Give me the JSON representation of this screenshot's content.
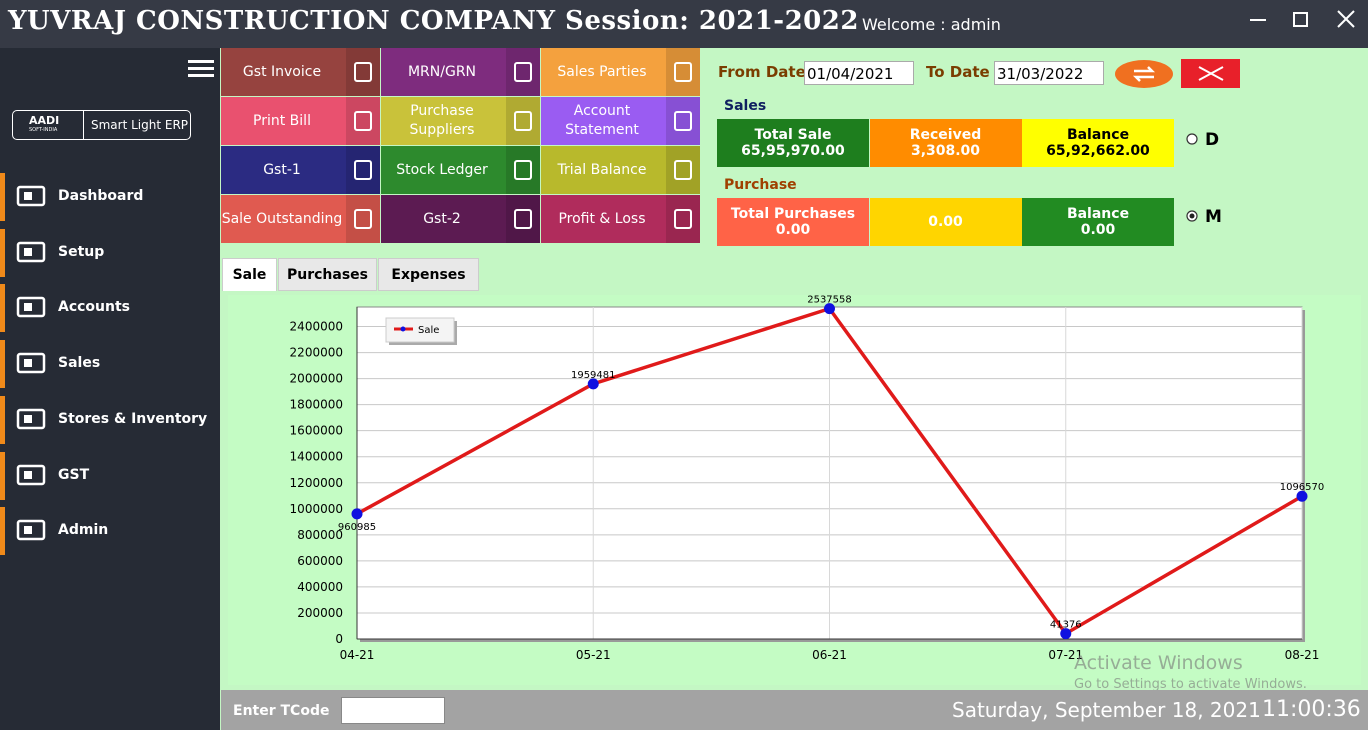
{
  "header": {
    "title": "YUVRAJ CONSTRUCTION COMPANY Session: 2021-2022",
    "welcome": "Welcome : admin"
  },
  "sidebar": {
    "logo": "AADI",
    "logo_sub": "SOFT-INDIA",
    "product": "Smart Light ERP",
    "menu": [
      "Dashboard",
      "Setup",
      "Accounts",
      "Sales",
      "Stores & Inventory",
      "GST",
      "Admin"
    ]
  },
  "tiles": [
    "Gst Invoice",
    "MRN/GRN",
    "Sales Parties",
    "Print Bill",
    "Purchase Suppliers",
    "Account Statement",
    "Gst-1",
    "Stock Ledger",
    "Trial Balance",
    "Sale Outstanding",
    "Gst-2",
    "Profit & Loss"
  ],
  "dates": {
    "from_label": "From Date",
    "from_value": "01/04/2021",
    "to_label": "To Date",
    "to_value": "31/03/2022"
  },
  "sales": {
    "title": "Sales",
    "cards": [
      {
        "label": "Total Sale",
        "value": "65,95,970.00"
      },
      {
        "label": "Received",
        "value": "3,308.00"
      },
      {
        "label": "Balance",
        "value": "65,92,662.00"
      }
    ]
  },
  "purchase": {
    "title": "Purchase",
    "cards": [
      {
        "label": "Total Purchases",
        "value": "0.00"
      },
      {
        "value": "0.00"
      },
      {
        "label": "Balance",
        "value": "0.00"
      }
    ]
  },
  "options": [
    "D",
    "M"
  ],
  "tabs": [
    "Sale",
    "Purchases",
    "Expenses"
  ],
  "chart_data": {
    "type": "line",
    "categories": [
      "04-21",
      "05-21",
      "06-21",
      "07-21",
      "08-21"
    ],
    "series": [
      {
        "name": "Sale",
        "color": "#e01a1a",
        "marker_color": "#1010e0",
        "values": [
          960985,
          1959481,
          2537558,
          41376,
          1096570
        ]
      }
    ],
    "ylim": [
      0,
      2550000
    ],
    "yticks": [
      0,
      200000,
      400000,
      600000,
      800000,
      1000000,
      1200000,
      1400000,
      1600000,
      1800000,
      2000000,
      2200000,
      2400000
    ],
    "grid": true,
    "legend": "upper-left"
  },
  "footer": {
    "tcode_label": "Enter TCode",
    "date": "Saturday, September 18, 2021",
    "time": "11:00:36"
  },
  "watermark": {
    "title": "Activate Windows",
    "subtitle": "Go to Settings to activate Windows."
  }
}
